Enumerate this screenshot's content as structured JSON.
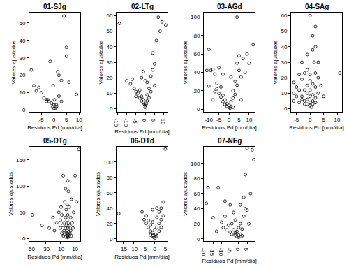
{
  "chart_data": [
    {
      "type": "scatter",
      "title": "01-SJg",
      "x_label": "Residuos Pd [mm/día]",
      "y_label": "Valores ajustados",
      "color": "#000000",
      "marker": "circle-open",
      "grid": false,
      "x": [
        -9,
        -8,
        -7,
        -6,
        -5,
        -4,
        -3,
        -2,
        -1,
        -1.5,
        0,
        -0.5,
        0,
        0.5,
        1,
        1,
        2,
        2,
        3,
        4,
        5,
        5,
        6,
        9,
        0.2,
        -2.5,
        -3,
        -0.3,
        1.5,
        3
      ],
      "y": [
        23,
        14,
        11,
        13,
        10,
        7,
        6,
        5,
        4,
        28,
        3,
        2,
        1,
        1,
        2,
        3,
        20,
        8,
        17,
        54,
        31,
        36,
        16,
        9,
        6,
        6,
        5,
        14,
        22,
        5
      ],
      "xlim": [
        -9.8,
        10.5
      ],
      "ylim": [
        -1,
        56
      ],
      "xticks": [
        -5,
        0,
        5,
        10
      ],
      "yticks": [
        0,
        10,
        20,
        30,
        40,
        50
      ]
    },
    {
      "type": "scatter",
      "title": "02-LTg",
      "x_label": "Residuos Pd [mm/día]",
      "y_label": "Valores ajustados",
      "color": "#000000",
      "marker": "circle-open",
      "grid": false,
      "x": [
        -14,
        -10,
        -8,
        -7,
        -6,
        -5,
        -5,
        -4,
        -3,
        -3,
        -2,
        -2,
        -1,
        -1,
        -0.5,
        0,
        0,
        0.5,
        1,
        1,
        2,
        2,
        3,
        4,
        4,
        5,
        6,
        7,
        8,
        9,
        11,
        -1,
        -2,
        0,
        1,
        3,
        5
      ],
      "y": [
        55,
        18,
        16,
        19,
        13,
        11,
        8,
        10,
        12,
        7,
        8,
        5,
        6,
        4,
        3,
        2,
        1,
        3,
        5,
        9,
        13,
        7,
        21,
        25,
        36,
        29,
        44,
        59,
        50,
        56,
        54,
        24,
        20,
        18,
        17,
        11,
        15
      ],
      "xlim": [
        -15.5,
        12
      ],
      "ylim": [
        -2,
        62
      ],
      "xticks": [
        -15,
        -10,
        -5,
        0,
        5,
        10
      ],
      "yticks": [
        0,
        10,
        20,
        30,
        40,
        50,
        60
      ]
    },
    {
      "type": "scatter",
      "title": "03-AGd",
      "x_label": "Residuos Pd [mm/día]",
      "y_label": "Valores ajustados",
      "color": "#000000",
      "marker": "circle-open",
      "grid": false,
      "x": [
        -11,
        -10,
        -10,
        -9,
        -8,
        -7,
        -7,
        -6,
        -6,
        -5,
        -4,
        -4,
        -3,
        -3,
        -2,
        -2,
        -1,
        -1,
        0,
        0,
        0.5,
        1,
        1,
        2,
        2,
        3,
        3,
        4,
        4,
        5,
        5,
        6,
        7,
        8,
        9,
        10,
        12,
        4,
        -3,
        1,
        -5,
        2,
        6,
        -8
      ],
      "y": [
        42,
        65,
        25,
        42,
        43,
        38,
        19,
        28,
        22,
        17,
        13,
        24,
        15,
        8,
        10,
        5,
        6,
        3,
        2,
        4,
        1,
        3,
        8,
        12,
        20,
        16,
        30,
        26,
        50,
        42,
        58,
        35,
        55,
        40,
        60,
        50,
        70,
        100,
        38,
        35,
        45,
        2,
        10,
        10
      ],
      "xlim": [
        -12.5,
        12.8
      ],
      "ylim": [
        -3,
        105
      ],
      "xticks": [
        -10,
        -5,
        0,
        5,
        10
      ],
      "yticks": [
        0,
        20,
        40,
        60,
        80,
        100
      ]
    },
    {
      "type": "scatter",
      "title": "04-SAg",
      "x_label": "Residuos Pd [mm/día]",
      "y_label": "Valores ajustados",
      "color": "#000000",
      "marker": "circle-open",
      "grid": false,
      "x": [
        -6,
        -6,
        -5,
        -5,
        -4,
        -4,
        -3,
        -3,
        -3,
        -2,
        -2,
        -2,
        -2,
        -1,
        -1,
        -1,
        -1,
        -1,
        0,
        0,
        0,
        0,
        0,
        0,
        0,
        0.5,
        1,
        1,
        1,
        1,
        1,
        1.5,
        2,
        2,
        2,
        2,
        2,
        3,
        3,
        4,
        5,
        -4,
        -6,
        11,
        1,
        3,
        -3,
        -1,
        2
      ],
      "y": [
        10,
        5,
        8,
        14,
        12,
        4,
        19,
        8,
        6,
        23,
        12,
        5,
        3,
        35,
        15,
        10,
        6,
        3,
        60,
        22,
        18,
        12,
        8,
        4,
        2,
        1,
        38,
        16,
        9,
        5,
        3,
        30,
        53,
        23,
        14,
        7,
        4,
        20,
        10,
        15,
        8,
        22,
        17,
        23,
        47,
        30,
        30,
        25,
        40
      ],
      "xlim": [
        -7,
        11.8
      ],
      "ylim": [
        -2,
        62
      ],
      "xticks": [
        -5,
        0,
        5,
        10
      ],
      "yticks": [
        0,
        10,
        20,
        30,
        40,
        50,
        60
      ]
    },
    {
      "type": "scatter",
      "title": "05-DTg",
      "x_label": "Residuos Pd [mm/día]",
      "y_label": "Valores ajustados",
      "color": "#000000",
      "marker": "circle-open",
      "grid": false,
      "x": [
        -48,
        -35,
        -25,
        -20,
        -18,
        -15,
        -12,
        -10,
        -10,
        -9,
        -8,
        -8,
        -7,
        -6,
        -6,
        -5,
        -5,
        -4,
        -4,
        -3,
        -3,
        -3,
        -2,
        -2,
        -2,
        -1,
        -1,
        -1,
        0,
        0,
        0,
        0,
        1,
        1,
        1,
        2,
        2,
        2,
        3,
        3,
        4,
        4,
        5,
        5,
        6,
        7,
        8,
        10,
        12,
        15,
        -3,
        -1,
        1,
        0
      ],
      "y": [
        45,
        25,
        20,
        40,
        15,
        30,
        50,
        35,
        20,
        60,
        10,
        45,
        25,
        120,
        5,
        15,
        30,
        70,
        8,
        20,
        40,
        3,
        10,
        55,
        25,
        5,
        15,
        35,
        2,
        8,
        20,
        45,
        4,
        12,
        30,
        6,
        18,
        60,
        10,
        25,
        40,
        15,
        75,
        5,
        30,
        20,
        50,
        120,
        70,
        170,
        95,
        65,
        90,
        110
      ],
      "xlim": [
        -52,
        17
      ],
      "ylim": [
        -5,
        175
      ],
      "xticks": [
        -50,
        -30,
        -10,
        10
      ],
      "yticks": [
        0,
        50,
        100,
        150
      ]
    },
    {
      "type": "scatter",
      "title": "06-DTd",
      "x_label": "Residuos Pd [mm/día]",
      "y_label": "Valores ajustados",
      "color": "#000000",
      "marker": "circle-open",
      "grid": false,
      "x": [
        -17,
        -6,
        -5,
        -4,
        -4,
        -3,
        -3,
        -2,
        -2,
        -2,
        -1,
        -1,
        -1,
        -0.5,
        0,
        0,
        0,
        0.5,
        1,
        1,
        1,
        2,
        2,
        2,
        3,
        3,
        4,
        4,
        5,
        -1,
        1,
        3
      ],
      "y": [
        33,
        35,
        25,
        20,
        30,
        15,
        24,
        10,
        18,
        5,
        8,
        4,
        22,
        2,
        1,
        3,
        12,
        6,
        4,
        15,
        28,
        10,
        20,
        35,
        25,
        40,
        30,
        48,
        117,
        38,
        40,
        15
      ],
      "xlim": [
        -18,
        6
      ],
      "ylim": [
        -3,
        120
      ],
      "xticks": [
        -15,
        -10,
        -5,
        0,
        5
      ],
      "yticks": [
        0,
        20,
        40,
        60,
        80,
        100
      ]
    },
    {
      "type": "scatter",
      "title": "07-NEg",
      "x_label": "Residuos Pd [mm/día]",
      "y_label": "Valores ajustados",
      "color": "#000000",
      "marker": "circle-open",
      "grid": false,
      "x": [
        -19,
        -18,
        -15,
        -13,
        -10,
        -9,
        -8,
        -7,
        -6,
        -5,
        -5,
        -4,
        -4,
        -3,
        -3,
        -2,
        -2,
        -2,
        -1,
        -1,
        0,
        0,
        0,
        1,
        1,
        2,
        2,
        3,
        3,
        4,
        4,
        5,
        5,
        6,
        7,
        8,
        9,
        -12,
        -8,
        1
      ],
      "y": [
        47,
        68,
        28,
        10,
        22,
        15,
        30,
        12,
        18,
        45,
        9,
        20,
        6,
        12,
        35,
        5,
        8,
        25,
        3,
        10,
        2,
        5,
        15,
        6,
        20,
        4,
        13,
        30,
        55,
        40,
        85,
        38,
        120,
        20,
        60,
        118,
        105,
        68,
        50,
        45
      ],
      "xlim": [
        -20.5,
        9.5
      ],
      "ylim": [
        -3,
        122
      ],
      "xticks": [
        -20,
        -15,
        -10,
        -5,
        0,
        5
      ],
      "yticks": [
        0,
        20,
        40,
        60,
        80,
        100
      ]
    }
  ]
}
